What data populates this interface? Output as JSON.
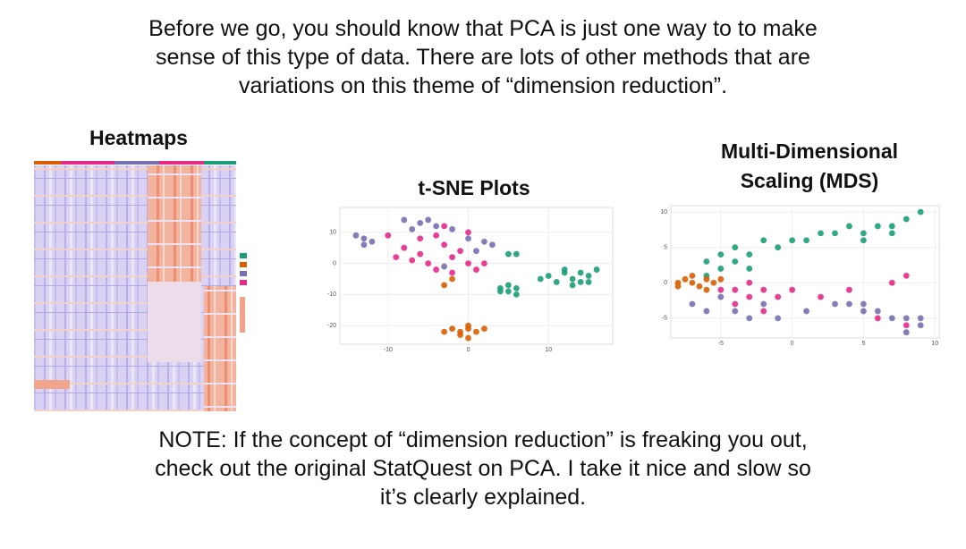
{
  "intro": [
    "Before we go, you should know that PCA is just one way to to make",
    "sense of this type of data. There are lots of other methods that are",
    "variations on this theme of “dimension reduction”."
  ],
  "heatmap": {
    "title": "Heatmaps"
  },
  "chart_data": [
    {
      "type": "scatter",
      "title": "t-SNE Plots",
      "xlim": [
        -16,
        18
      ],
      "ylim": [
        -26,
        18
      ],
      "xticks": [
        -10,
        0,
        10
      ],
      "yticks": [
        -20,
        -10,
        0,
        10
      ],
      "grid": true,
      "series": [
        {
          "color": "#7570b3",
          "x": [
            -13,
            -8,
            -6,
            -4,
            -2,
            0,
            2,
            3,
            -12,
            -14,
            -13,
            -3,
            -5,
            -7,
            1
          ],
          "y": [
            8,
            14,
            13,
            12,
            11,
            8,
            7,
            6,
            7,
            9,
            6,
            -1,
            14,
            11,
            4
          ]
        },
        {
          "color": "#e7298a",
          "x": [
            -10,
            -8,
            -6,
            -5,
            -4,
            -3,
            -2,
            -1,
            0,
            -6,
            -7,
            -4,
            1,
            -2,
            -9,
            -3,
            0,
            2
          ],
          "y": [
            9,
            5,
            3,
            0,
            -2,
            6,
            2,
            4,
            0,
            8,
            1,
            9,
            -2,
            -3,
            2,
            12,
            10,
            0
          ]
        },
        {
          "color": "#d95f02",
          "x": [
            -2,
            -1,
            0,
            1,
            -1,
            0,
            2,
            -3,
            0,
            -2,
            -3
          ],
          "y": [
            -21,
            -22,
            -21,
            -22,
            -23,
            -20,
            -21,
            -22,
            -24,
            -5,
            -7
          ]
        },
        {
          "color": "#1b9e77",
          "x": [
            10,
            12,
            13,
            14,
            15,
            11,
            13,
            16,
            9,
            14,
            12,
            15,
            4,
            5,
            6,
            5,
            4,
            6,
            5,
            6
          ],
          "y": [
            -4,
            -3,
            -5,
            -3,
            -4,
            -6,
            -7,
            -2,
            -5,
            -6,
            -2,
            -6,
            -8,
            -9,
            -8,
            -7,
            -9,
            -10,
            3,
            3
          ]
        }
      ]
    },
    {
      "type": "scatter",
      "title": "Multi-Dimensional Scaling (MDS)",
      "xlim": [
        -8.5,
        10.3
      ],
      "ylim": [
        -7.8,
        10.9
      ],
      "xticks": [
        -5,
        0,
        5,
        10
      ],
      "yticks": [
        -5,
        0,
        5,
        10
      ],
      "grid": true,
      "series": [
        {
          "color": "#1b9e77",
          "x": [
            -6,
            -5,
            -4,
            -3,
            -2,
            -1,
            0,
            1,
            3,
            4,
            5,
            6,
            7,
            8,
            9,
            -5,
            -4,
            -3,
            -6,
            2,
            5,
            7
          ],
          "y": [
            3,
            4,
            5,
            4,
            6,
            5,
            6,
            6,
            7,
            8,
            7,
            8,
            8,
            9,
            10,
            2,
            3,
            2,
            1,
            7,
            6,
            7
          ]
        },
        {
          "color": "#d95f02",
          "x": [
            -8,
            -7.5,
            -7,
            -6.5,
            -6,
            -5.5,
            -7,
            -6,
            -5,
            -8
          ],
          "y": [
            0,
            0.5,
            0,
            -0.5,
            0.5,
            0,
            1,
            -1,
            0.5,
            -0.5
          ]
        },
        {
          "color": "#e7298a",
          "x": [
            -5,
            -4,
            -3,
            -2,
            -1,
            -4,
            -3,
            0,
            2,
            4,
            7,
            8,
            6,
            8,
            -2
          ],
          "y": [
            -1,
            -1,
            -2,
            -1,
            -2,
            -3,
            0,
            -1,
            -2,
            -1,
            0,
            1,
            -5,
            -6,
            -4
          ]
        },
        {
          "color": "#7570b3",
          "x": [
            -7,
            -6,
            -5,
            -4,
            -3,
            -2,
            1,
            4,
            5,
            6,
            7,
            8,
            9,
            5,
            -1,
            8,
            9,
            3
          ],
          "y": [
            -3,
            -4,
            -2,
            -4,
            -5,
            -3,
            -4,
            -3,
            -4,
            -4,
            -5,
            -5,
            -6,
            -3,
            -5,
            -7,
            -5,
            -3
          ]
        }
      ]
    }
  ],
  "note": [
    "NOTE: If the concept of “dimension reduction” is freaking you out,",
    "check out the original StatQuest on PCA. I take it nice and slow so",
    "it’s clearly explained."
  ]
}
